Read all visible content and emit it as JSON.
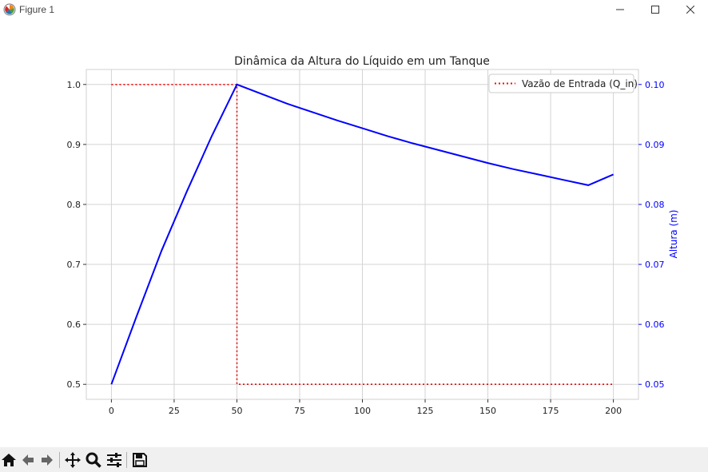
{
  "window": {
    "title": "Figure 1",
    "minimize_icon": "minimize-icon",
    "maximize_icon": "maximize-icon",
    "close_icon": "close-icon"
  },
  "toolbar": {
    "buttons": [
      "home-icon",
      "back-arrow-icon",
      "forward-arrow-icon",
      "pan-move-icon",
      "zoom-magnifier-icon",
      "configure-subplots-icon",
      "save-icon"
    ]
  },
  "chart_data": {
    "type": "line",
    "title": "Dinâmica da Altura do Líquido em um Tanque",
    "xlabel": "",
    "ylabel_left": "",
    "ylabel_right": "Altura (m)",
    "xlim": [
      -10,
      210
    ],
    "ylim_left": [
      0.475,
      1.025
    ],
    "ylim_right": [
      0.0475,
      0.1025
    ],
    "xticks": [
      "0",
      "25",
      "50",
      "75",
      "100",
      "125",
      "150",
      "175",
      "200"
    ],
    "xtick_values": [
      0,
      25,
      50,
      75,
      100,
      125,
      150,
      175,
      200
    ],
    "yticks_left": [
      "0.5",
      "0.6",
      "0.7",
      "0.8",
      "0.9",
      "1.0"
    ],
    "ytick_values_left": [
      0.5,
      0.6,
      0.7,
      0.8,
      0.9,
      1.0
    ],
    "yticks_right": [
      "0.05",
      "0.06",
      "0.07",
      "0.08",
      "0.09",
      "0.10"
    ],
    "ytick_values_right": [
      0.05,
      0.06,
      0.07,
      0.08,
      0.09,
      0.1
    ],
    "grid": true,
    "legend_position": "upper right",
    "series": [
      {
        "name": "Vazão de Entrada (Q_in)",
        "axis": "left",
        "style": "dotted",
        "color": "#ff0000",
        "x": [
          0,
          50,
          50,
          200
        ],
        "y": [
          1.0,
          1.0,
          0.5,
          0.5
        ]
      },
      {
        "axis": "right",
        "style": "solid",
        "color": "#0000ff",
        "x": [
          0,
          10,
          20,
          30,
          40,
          50,
          60,
          70,
          80,
          90,
          100,
          110,
          120,
          130,
          140,
          150,
          160,
          170,
          180,
          190,
          200
        ],
        "y": [
          0.05,
          0.0613,
          0.0723,
          0.0821,
          0.0914,
          0.1,
          0.0984,
          0.0968,
          0.0954,
          0.094,
          0.0927,
          0.0914,
          0.0902,
          0.0891,
          0.088,
          0.0869,
          0.0859,
          0.085,
          0.0841,
          0.0832,
          0.085
        ]
      }
    ]
  }
}
